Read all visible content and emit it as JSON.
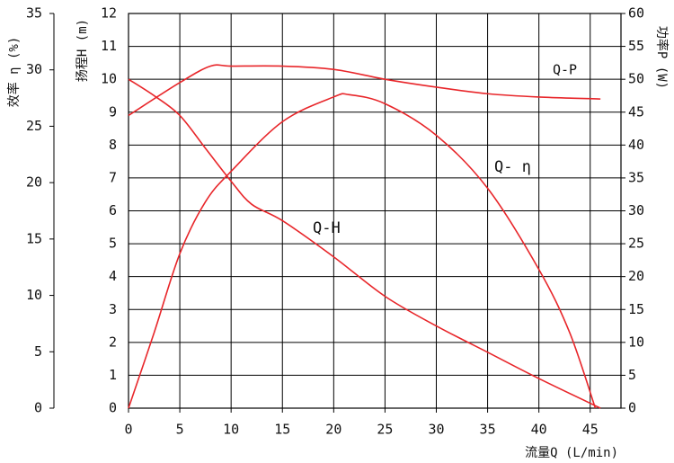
{
  "chart_data": {
    "type": "line",
    "x_label": "流量Q (L/min)",
    "y_label": "扬程H (m)",
    "y2_label": "功率P (W)",
    "y3_label": "效率 η (%)",
    "xlim": [
      0,
      48
    ],
    "xticks": [
      0,
      5,
      10,
      15,
      20,
      25,
      30,
      35,
      40,
      45
    ],
    "ylim": [
      0,
      12
    ],
    "yticks": [
      0,
      1,
      2,
      3,
      4,
      5,
      6,
      7,
      8,
      9,
      10,
      11,
      12
    ],
    "y2lim": [
      0,
      60
    ],
    "y2ticks": [
      0,
      5,
      10,
      15,
      20,
      25,
      30,
      35,
      40,
      45,
      50,
      55,
      60
    ],
    "y3lim": [
      0,
      35
    ],
    "y3ticks": [
      0,
      5,
      10,
      15,
      20,
      25,
      30,
      35
    ],
    "grid": true,
    "series": [
      {
        "name": "Q-H",
        "color": "#e8262a",
        "axis": "y",
        "x": [
          0,
          2.5,
          5,
          7.5,
          10,
          12,
          15,
          20,
          25,
          30,
          35,
          40,
          46
        ],
        "values": [
          10,
          9.5,
          8.9,
          7.9,
          6.9,
          6.2,
          5.7,
          4.6,
          3.4,
          2.5,
          1.7,
          0.9,
          0
        ]
      },
      {
        "name": "Q- η",
        "color": "#e8262a",
        "axis": "y3",
        "x": [
          0,
          2.5,
          5,
          7.5,
          10,
          15,
          20,
          21.5,
          25,
          30,
          35,
          40,
          43,
          45.5
        ],
        "values": [
          0,
          6.7,
          13.7,
          18.3,
          21,
          25.4,
          27.6,
          27.8,
          27,
          24.2,
          19.5,
          12.3,
          6.7,
          0
        ]
      },
      {
        "name": "Q-P",
        "color": "#e8262a",
        "axis": "y2",
        "x": [
          0,
          5,
          8,
          10,
          15,
          20,
          25,
          30,
          35,
          40,
          46
        ],
        "values": [
          44.5,
          49.5,
          52,
          52,
          52,
          51.5,
          50,
          48.8,
          47.8,
          47.3,
          47
        ]
      }
    ]
  }
}
